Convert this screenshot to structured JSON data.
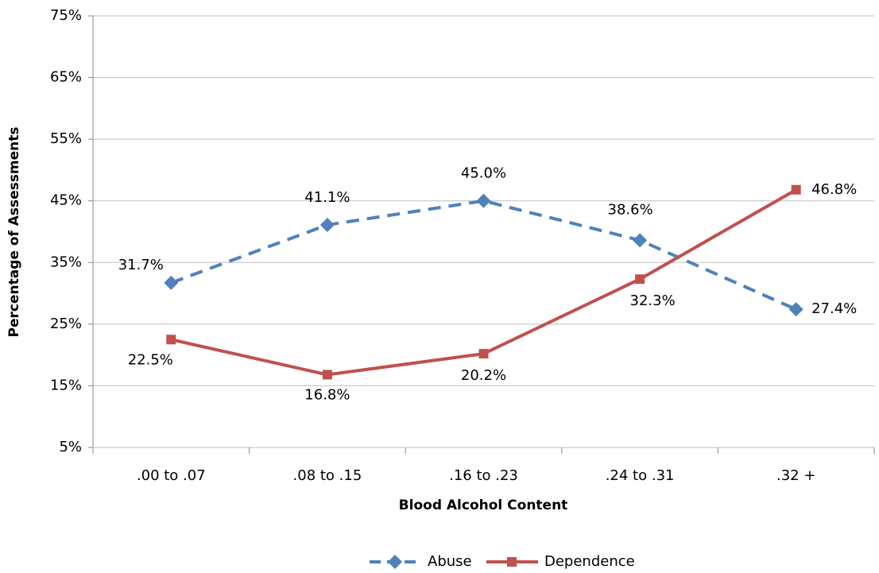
{
  "chart_data": {
    "type": "line",
    "x_label": "Blood Alcohol Content",
    "y_label": "Percentage of Assessments",
    "categories": [
      ".00 to .07",
      ".08 to .15",
      ".16 to .23",
      ".24 to .31",
      ".32 +"
    ],
    "series": [
      {
        "name": "Abuse",
        "color": "#4f81bd",
        "marker": "diamond",
        "dashed": true,
        "values": [
          31.7,
          41.1,
          45.0,
          38.6,
          27.4
        ],
        "value_labels": [
          "31.7%",
          "41.1%",
          "45.0%",
          "38.6%",
          "27.4%"
        ]
      },
      {
        "name": "Dependence",
        "color": "#c0504d",
        "marker": "square",
        "dashed": false,
        "values": [
          22.5,
          16.8,
          20.2,
          32.3,
          46.8
        ],
        "value_labels": [
          "22.5%",
          "16.8%",
          "20.2%",
          "32.3%",
          "46.8%"
        ]
      }
    ],
    "ylim": [
      5,
      75
    ],
    "yticks": [
      {
        "value": 5,
        "label": "5%"
      },
      {
        "value": 15,
        "label": "15%"
      },
      {
        "value": 25,
        "label": "25%"
      },
      {
        "value": 35,
        "label": "35%"
      },
      {
        "value": 45,
        "label": "45%"
      },
      {
        "value": 55,
        "label": "55%"
      },
      {
        "value": 65,
        "label": "65%"
      },
      {
        "value": 75,
        "label": "75%"
      }
    ],
    "grid": true,
    "legend": "bottom"
  }
}
